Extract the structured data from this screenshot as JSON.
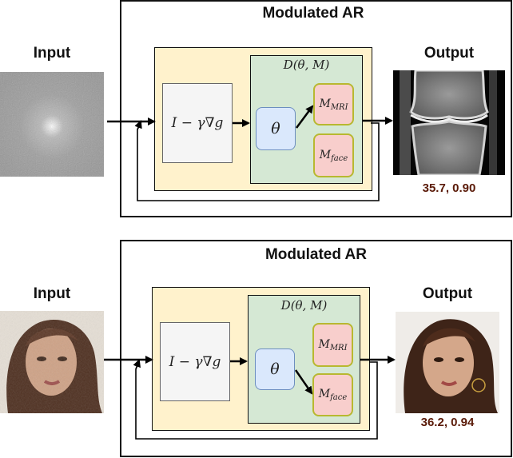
{
  "rows": [
    {
      "title": "Modulated AR",
      "input_label": "Input",
      "output_label": "Output",
      "gradient_step": "I − γ∇g",
      "denoiser": "D(θ, M)",
      "theta": "θ",
      "model_mri": {
        "base": "M",
        "sub": "MRI"
      },
      "model_face": {
        "base": "M",
        "sub": "face"
      },
      "metric": "35.7, 0.90",
      "selected_model": "MRI"
    },
    {
      "title": "Modulated AR",
      "input_label": "Input",
      "output_label": "Output",
      "gradient_step": "I − γ∇g",
      "denoiser": "D(θ, M)",
      "theta": "θ",
      "model_mri": {
        "base": "M",
        "sub": "MRI"
      },
      "model_face": {
        "base": "M",
        "sub": "face"
      },
      "metric": "36.2, 0.94",
      "selected_model": "face"
    }
  ],
  "colors": {
    "yellow_block": "#fff2cc",
    "green_block": "#d5e8d4",
    "theta_block": "#dae8fc",
    "model_block": "#f8cecc",
    "metric_text": "#5a1a08"
  }
}
